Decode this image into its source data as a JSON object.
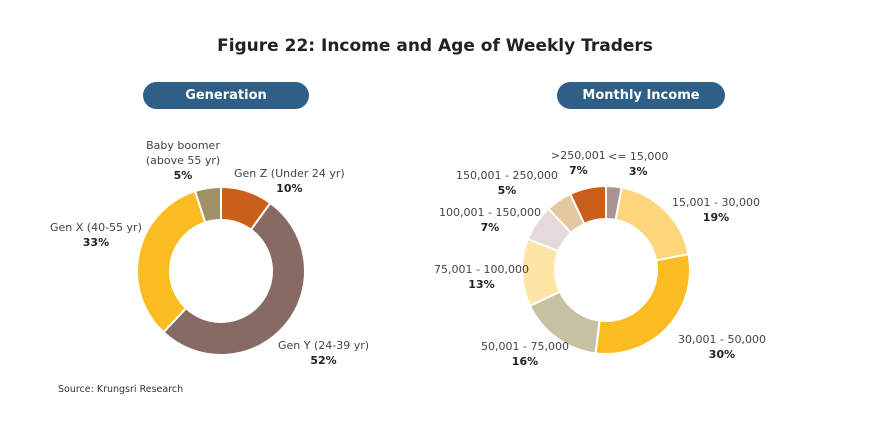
{
  "chart_data": [
    {
      "type": "pie",
      "donut": true,
      "title": "Generation",
      "slices": [
        {
          "label": "Gen Z  (Under 24 yr)",
          "value": 10,
          "value_label": "10%",
          "color": "#c95f1a"
        },
        {
          "label": "Gen Y (24-39 yr)",
          "value": 52,
          "value_label": "52%",
          "color": "#866a63"
        },
        {
          "label": "Gen X  (40-55 yr)",
          "value": 33,
          "value_label": "33%",
          "color": "#fbbc21"
        },
        {
          "label": "Baby boomer (above 55 yr)",
          "value": 5,
          "value_label": "5%",
          "color": "#a09165"
        }
      ]
    },
    {
      "type": "pie",
      "donut": true,
      "title": "Monthly Income",
      "slices": [
        {
          "label": "<= 15,000",
          "value": 3,
          "value_label": "3%",
          "color": "#a99291"
        },
        {
          "label": "15,001 - 30,000",
          "value": 19,
          "value_label": "19%",
          "color": "#fdd67c"
        },
        {
          "label": "30,001 - 50,000",
          "value": 30,
          "value_label": "30%",
          "color": "#fbbc21"
        },
        {
          "label": "50,001 - 75,000",
          "value": 16,
          "value_label": "16%",
          "color": "#c7c0a3"
        },
        {
          "label": "75,001 - 100,000",
          "value": 13,
          "value_label": "13%",
          "color": "#fde5a6"
        },
        {
          "label": "100,001 - 150,000",
          "value": 7,
          "value_label": "7%",
          "color": "#e5dada"
        },
        {
          "label": "150,001 - 250,000",
          "value": 5,
          "value_label": "5%",
          "color": "#e3c8a0"
        },
        {
          "label": ">250,001",
          "value": 7,
          "value_label": "7%",
          "color": "#c95f1a"
        }
      ]
    }
  ],
  "figure_title": "Figure 22: Income and Age of Weekly Traders",
  "source": "Source: Krungsri Research",
  "colors": {
    "pill": "#2f5e86"
  }
}
